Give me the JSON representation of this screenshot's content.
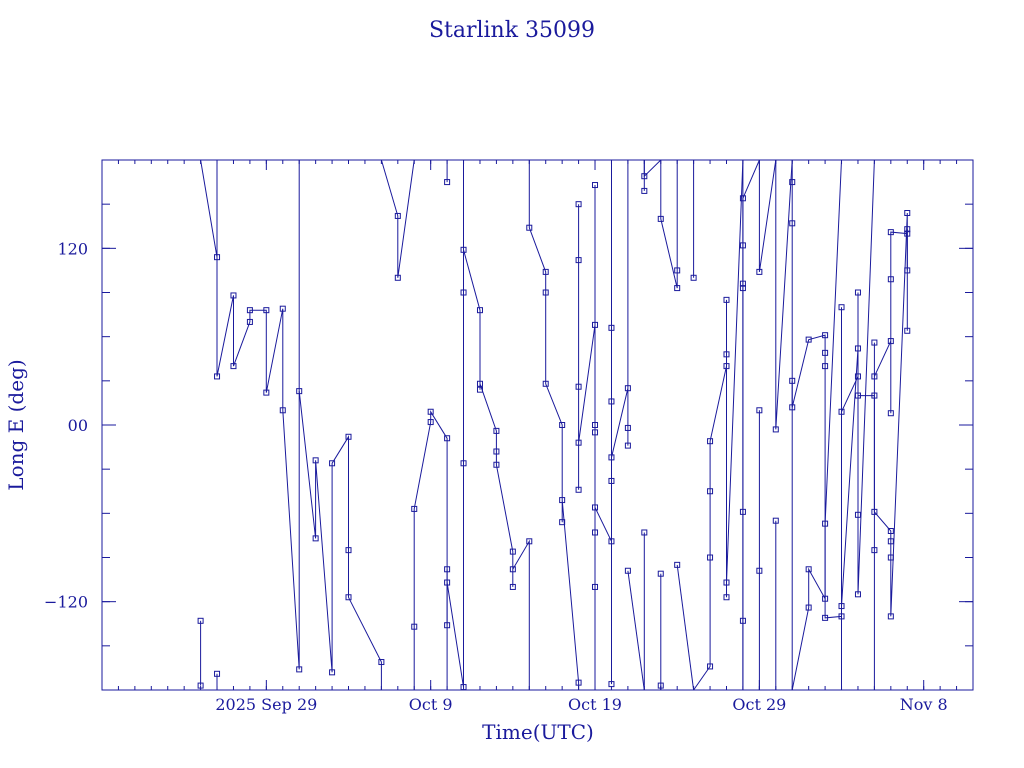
{
  "chart_data": {
    "type": "line",
    "title": "Starlink 35099",
    "xlabel": "Time(UTC)",
    "ylabel": "Long E (deg)",
    "x_unit": "days",
    "x_ticks": [
      {
        "x": "2025-09-29",
        "label": "2025 Sep 29"
      },
      {
        "x": "2025-10-09",
        "label": "Oct  9"
      },
      {
        "x": "2025-10-19",
        "label": "Oct 19"
      },
      {
        "x": "2025-10-29",
        "label": "Oct 29"
      },
      {
        "x": "2025-11-08",
        "label": "Nov  8"
      }
    ],
    "xlim": [
      "2025-09-19",
      "2025-11-11"
    ],
    "ylim": [
      -180,
      180
    ],
    "y_ticks": [
      {
        "y": 120,
        "label": "120"
      },
      {
        "y": 0,
        "label": "00"
      },
      {
        "y": -120,
        "label": "−120"
      }
    ],
    "line_color": "#1a1a9c",
    "marker": "square",
    "grid": false,
    "series": [
      {
        "values": [
          [
            "2025-09-25",
            -133
          ],
          [
            "2025-09-25",
            -177
          ]
        ]
      },
      {
        "values": [
          [
            "2025-09-25",
            180
          ],
          [
            "2025-09-26",
            114
          ],
          [
            "2025-09-26",
            180
          ]
        ]
      },
      {
        "values": [
          [
            "2025-09-26",
            -180
          ],
          [
            "2025-09-26",
            -169
          ]
        ]
      },
      {
        "values": [
          [
            "2025-09-26",
            180
          ],
          [
            "2025-09-26",
            33
          ],
          [
            "2025-09-27",
            88
          ],
          [
            "2025-09-27",
            40
          ],
          [
            "2025-09-28",
            70
          ],
          [
            "2025-09-28",
            78
          ],
          [
            "2025-09-29",
            78
          ],
          [
            "2025-09-29",
            22
          ],
          [
            "2025-09-30",
            79
          ],
          [
            "2025-09-30",
            10
          ],
          [
            "2025-10-01",
            -166
          ],
          [
            "2025-10-01",
            180
          ]
        ]
      },
      {
        "values": [
          [
            "2025-10-01",
            23
          ],
          [
            "2025-10-02",
            -77
          ],
          [
            "2025-10-02",
            -24
          ],
          [
            "2025-10-03",
            -168
          ],
          [
            "2025-10-03",
            -26
          ],
          [
            "2025-10-04",
            -8
          ],
          [
            "2025-10-04",
            -85
          ],
          [
            "2025-10-04",
            -117
          ],
          [
            "2025-10-06",
            -161
          ],
          [
            "2025-10-06",
            -180
          ]
        ]
      },
      {
        "values": [
          [
            "2025-10-06",
            180
          ],
          [
            "2025-10-07",
            142
          ],
          [
            "2025-10-07",
            100
          ],
          [
            "2025-10-08",
            180
          ]
        ]
      },
      {
        "values": [
          [
            "2025-10-08",
            -180
          ],
          [
            "2025-10-08",
            -137
          ],
          [
            "2025-10-08",
            -57
          ],
          [
            "2025-10-09",
            2
          ],
          [
            "2025-10-09",
            9
          ],
          [
            "2025-10-10",
            -9
          ],
          [
            "2025-10-10",
            -180
          ]
        ]
      },
      {
        "values": [
          [
            "2025-10-10",
            180
          ],
          [
            "2025-10-10",
            165
          ],
          [
            "2025-10-10",
            180
          ]
        ]
      },
      {
        "values": [
          [
            "2025-10-10",
            -98
          ],
          [
            "2025-10-10",
            -136
          ],
          [
            "2025-10-10",
            -107
          ],
          [
            "2025-10-11",
            -178
          ],
          [
            "2025-10-11",
            180
          ]
        ]
      },
      {
        "values": [
          [
            "2025-10-11",
            90
          ],
          [
            "2025-10-11",
            -26
          ],
          [
            "2025-10-11",
            119
          ],
          [
            "2025-10-12",
            78
          ],
          [
            "2025-10-12",
            24
          ],
          [
            "2025-10-12",
            28
          ],
          [
            "2025-10-13",
            -4
          ],
          [
            "2025-10-13",
            -18
          ],
          [
            "2025-10-13",
            -27
          ],
          [
            "2025-10-14",
            -86
          ],
          [
            "2025-10-14",
            -110
          ],
          [
            "2025-10-14",
            -98
          ],
          [
            "2025-10-15",
            -79
          ],
          [
            "2025-10-15",
            -180
          ]
        ]
      },
      {
        "values": [
          [
            "2025-10-15",
            180
          ],
          [
            "2025-10-15",
            134
          ],
          [
            "2025-10-16",
            104
          ],
          [
            "2025-10-16",
            90
          ],
          [
            "2025-10-16",
            28
          ],
          [
            "2025-10-17",
            0
          ],
          [
            "2025-10-17",
            -66
          ],
          [
            "2025-10-17",
            -51
          ],
          [
            "2025-10-18",
            -175
          ],
          [
            "2025-10-18",
            -180
          ]
        ]
      },
      {
        "values": [
          [
            "2025-10-18",
            -44
          ],
          [
            "2025-10-18",
            26
          ],
          [
            "2025-10-18",
            112
          ],
          [
            "2025-10-18",
            150
          ],
          [
            "2025-10-18",
            -12
          ],
          [
            "2025-10-19",
            68
          ],
          [
            "2025-10-19",
            0
          ],
          [
            "2025-10-19",
            -5
          ],
          [
            "2025-10-19",
            -73
          ],
          [
            "2025-10-19",
            -110
          ],
          [
            "2025-10-19",
            163
          ],
          [
            "2025-10-19",
            -180
          ]
        ]
      },
      {
        "values": [
          [
            "2025-10-19",
            -56
          ],
          [
            "2025-10-20",
            -79
          ],
          [
            "2025-10-20",
            -38
          ],
          [
            "2025-10-20",
            16
          ],
          [
            "2025-10-20",
            180
          ]
        ]
      },
      {
        "values": [
          [
            "2025-10-20",
            -176
          ],
          [
            "2025-10-20",
            66
          ],
          [
            "2025-10-20",
            -22
          ],
          [
            "2025-10-21",
            25
          ],
          [
            "2025-10-21",
            -14
          ],
          [
            "2025-10-21",
            -2
          ],
          [
            "2025-10-21",
            180
          ]
        ]
      },
      {
        "values": [
          [
            "2025-10-21",
            -99
          ],
          [
            "2025-10-22",
            -180
          ]
        ]
      },
      {
        "values": [
          [
            "2025-10-22",
            180
          ],
          [
            "2025-10-22",
            159
          ],
          [
            "2025-10-22",
            180
          ]
        ]
      },
      {
        "values": [
          [
            "2025-10-22",
            -73
          ],
          [
            "2025-10-22",
            -180
          ]
        ]
      },
      {
        "values": [
          [
            "2025-10-22",
            180
          ],
          [
            "2025-10-22",
            169
          ],
          [
            "2025-10-23",
            180
          ]
        ]
      },
      {
        "values": [
          [
            "2025-10-23",
            -101
          ],
          [
            "2025-10-23",
            -180
          ]
        ]
      },
      {
        "values": [
          [
            "2025-10-23",
            -177
          ],
          [
            "2025-10-23",
            -180
          ]
        ]
      },
      {
        "values": [
          [
            "2025-10-23",
            180
          ],
          [
            "2025-10-23",
            140
          ],
          [
            "2025-10-24",
            93
          ],
          [
            "2025-10-24",
            105
          ],
          [
            "2025-10-24",
            180
          ]
        ]
      },
      {
        "values": [
          [
            "2025-10-24",
            -95
          ],
          [
            "2025-10-25",
            -180
          ]
        ]
      },
      {
        "values": [
          [
            "2025-10-25",
            180
          ],
          [
            "2025-10-25",
            100
          ],
          [
            "2025-10-25",
            180
          ]
        ]
      },
      {
        "values": [
          [
            "2025-10-25",
            -180
          ],
          [
            "2025-10-26",
            -164
          ],
          [
            "2025-10-26",
            -90
          ],
          [
            "2025-10-26",
            -45
          ],
          [
            "2025-10-26",
            -11
          ],
          [
            "2025-10-27",
            40
          ],
          [
            "2025-10-27",
            48
          ],
          [
            "2025-10-27",
            85
          ],
          [
            "2025-10-27",
            -117
          ],
          [
            "2025-10-27",
            -107
          ],
          [
            "2025-10-28",
            180
          ]
        ]
      },
      {
        "values": [
          [
            "2025-10-28",
            -180
          ],
          [
            "2025-10-28",
            -133
          ],
          [
            "2025-10-28",
            -59
          ],
          [
            "2025-10-28",
            96
          ],
          [
            "2025-10-28",
            122
          ],
          [
            "2025-10-28",
            180
          ]
        ]
      },
      {
        "values": [
          [
            "2025-10-28",
            -180
          ],
          [
            "2025-10-28",
            93
          ],
          [
            "2025-10-28",
            154
          ],
          [
            "2025-10-29",
            180
          ]
        ]
      },
      {
        "values": [
          [
            "2025-10-29",
            -180
          ],
          [
            "2025-10-29",
            10
          ],
          [
            "2025-10-29",
            -99
          ],
          [
            "2025-10-29",
            -180
          ]
        ]
      },
      {
        "values": [
          [
            "2025-10-29",
            180
          ],
          [
            "2025-10-29",
            104
          ],
          [
            "2025-10-30",
            180
          ]
        ]
      },
      {
        "values": [
          [
            "2025-10-30",
            -180
          ],
          [
            "2025-10-30",
            -65
          ],
          [
            "2025-10-30",
            -183
          ],
          [
            "2025-10-30",
            -180
          ]
        ]
      },
      {
        "values": [
          [
            "2025-10-30",
            180
          ],
          [
            "2025-10-30",
            -3
          ],
          [
            "2025-10-31",
            180
          ]
        ]
      },
      {
        "values": [
          [
            "2025-10-31",
            -180
          ],
          [
            "2025-10-31",
            165
          ],
          [
            "2025-10-31",
            137
          ],
          [
            "2025-10-31",
            180
          ]
        ]
      },
      {
        "values": [
          [
            "2025-10-31",
            -180
          ],
          [
            "2025-11-01",
            -124
          ],
          [
            "2025-11-01",
            -98
          ],
          [
            "2025-11-02",
            -118
          ],
          [
            "2025-11-02",
            -67
          ],
          [
            "2025-11-03",
            180
          ]
        ]
      },
      {
        "values": [
          [
            "2025-11-03",
            -180
          ],
          [
            "2025-11-03",
            80
          ],
          [
            "2025-11-03",
            9
          ],
          [
            "2025-11-04",
            33
          ],
          [
            "2025-11-04",
            -61
          ],
          [
            "2025-11-04",
            -115
          ],
          [
            "2025-11-05",
            180
          ]
        ]
      },
      {
        "values": [
          [
            "2025-11-05",
            -180
          ],
          [
            "2025-11-05",
            -85
          ],
          [
            "2025-11-05",
            56
          ],
          [
            "2025-11-05",
            33
          ],
          [
            "2025-11-06",
            57
          ],
          [
            "2025-11-06",
            8
          ],
          [
            "2025-11-06",
            99
          ],
          [
            "2025-11-06",
            131
          ],
          [
            "2025-11-07",
            130
          ],
          [
            "2025-11-07",
            64
          ],
          [
            "2025-11-07",
            133
          ]
        ]
      },
      {
        "values": [
          [
            "2025-10-31",
            30
          ],
          [
            "2025-10-31",
            12
          ],
          [
            "2025-11-01",
            58
          ],
          [
            "2025-11-02",
            61
          ],
          [
            "2025-11-02",
            49
          ],
          [
            "2025-11-02",
            40
          ],
          [
            "2025-11-02",
            -131
          ],
          [
            "2025-11-03",
            -130
          ],
          [
            "2025-11-03",
            -123
          ],
          [
            "2025-11-04",
            52
          ],
          [
            "2025-11-04",
            90
          ],
          [
            "2025-11-04",
            20
          ],
          [
            "2025-11-05",
            20
          ],
          [
            "2025-11-05",
            -59
          ],
          [
            "2025-11-06",
            -72
          ],
          [
            "2025-11-06",
            -79
          ],
          [
            "2025-11-06",
            -90
          ],
          [
            "2025-11-06",
            -130
          ],
          [
            "2025-11-07",
            144
          ],
          [
            "2025-11-07",
            105
          ]
        ]
      }
    ]
  }
}
